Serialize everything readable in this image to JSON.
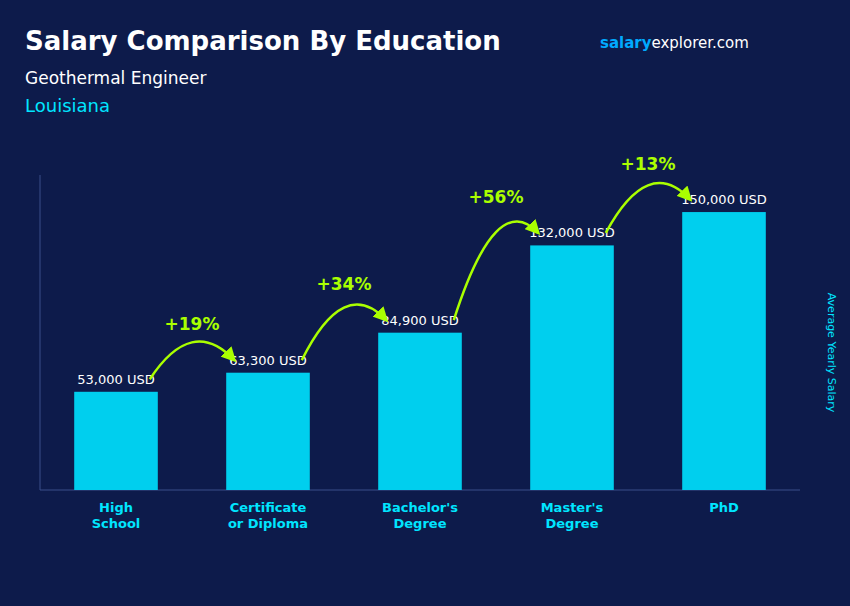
{
  "chart_data": {
    "type": "bar",
    "title": "Salary Comparison By Education",
    "subtitle": [
      "Geothermal Engineer",
      "Louisiana"
    ],
    "website": [
      "salary",
      "explorer.com"
    ],
    "y_label": "Average Yearly Salary",
    "categories": [
      "High\nSchool",
      "Certificate\nor Diploma",
      "Bachelor's\nDegree",
      "Master's\nDegree",
      "PhD"
    ],
    "values": [
      53000,
      63300,
      84900,
      132000,
      150000
    ],
    "value_labels": [
      "53,000 USD",
      "63,300 USD",
      "84,900 USD",
      "132,000 USD",
      "150,000 USD"
    ],
    "annotations": [
      "+19%",
      "+34%",
      "+56%",
      "+13%"
    ],
    "color": "#00cfee",
    "ylim": [
      0,
      170000
    ],
    "data_labels": true,
    "tick_labels": "x",
    "grid": false
  }
}
